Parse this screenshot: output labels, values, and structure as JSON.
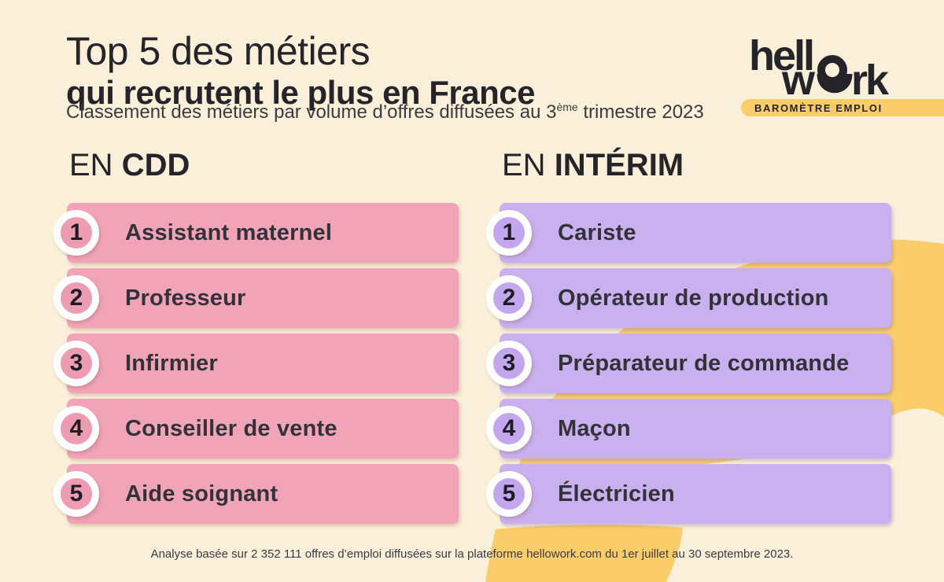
{
  "header": {
    "title_line1": "Top 5 des métiers",
    "title_line2": "qui recrutent le plus en France",
    "subtitle_prefix": "Classement des métiers par volume d’offres diffusées au 3",
    "subtitle_sup": "ème",
    "subtitle_suffix": " trimestre 2023"
  },
  "logo": {
    "line1": "hell",
    "line2_w": "w",
    "line2_rk": "rk",
    "badge": "BAROMÈTRE EMPLOI"
  },
  "columns": [
    {
      "id": "cdd",
      "heading_prefix": "EN ",
      "heading_strong": "CDD",
      "accent": "#F1A4B8",
      "items": [
        {
          "rank": "1",
          "label": "Assistant maternel"
        },
        {
          "rank": "2",
          "label": "Professeur"
        },
        {
          "rank": "3",
          "label": "Infirmier"
        },
        {
          "rank": "4",
          "label": "Conseiller de vente"
        },
        {
          "rank": "5",
          "label": "Aide soignant"
        }
      ]
    },
    {
      "id": "interim",
      "heading_prefix": "EN ",
      "heading_strong": "INTÉRIM",
      "accent": "#C9B0EF",
      "items": [
        {
          "rank": "1",
          "label": "Cariste"
        },
        {
          "rank": "2",
          "label": "Opérateur de production"
        },
        {
          "rank": "3",
          "label": "Préparateur de commande"
        },
        {
          "rank": "4",
          "label": "Maçon"
        },
        {
          "rank": "5",
          "label": "Électricien"
        }
      ]
    }
  ],
  "footer": {
    "note": "Analyse basée sur 2 352 111 offres d’emploi diffusées sur la plateforme hellowork.com du 1er juillet au 30 septembre 2023."
  },
  "colors": {
    "background": "#FAF0D9",
    "yellow": "#FBCD6A",
    "pink": "#F1A4B8",
    "purple": "#C9B0EF",
    "text_dark": "#26242B"
  }
}
